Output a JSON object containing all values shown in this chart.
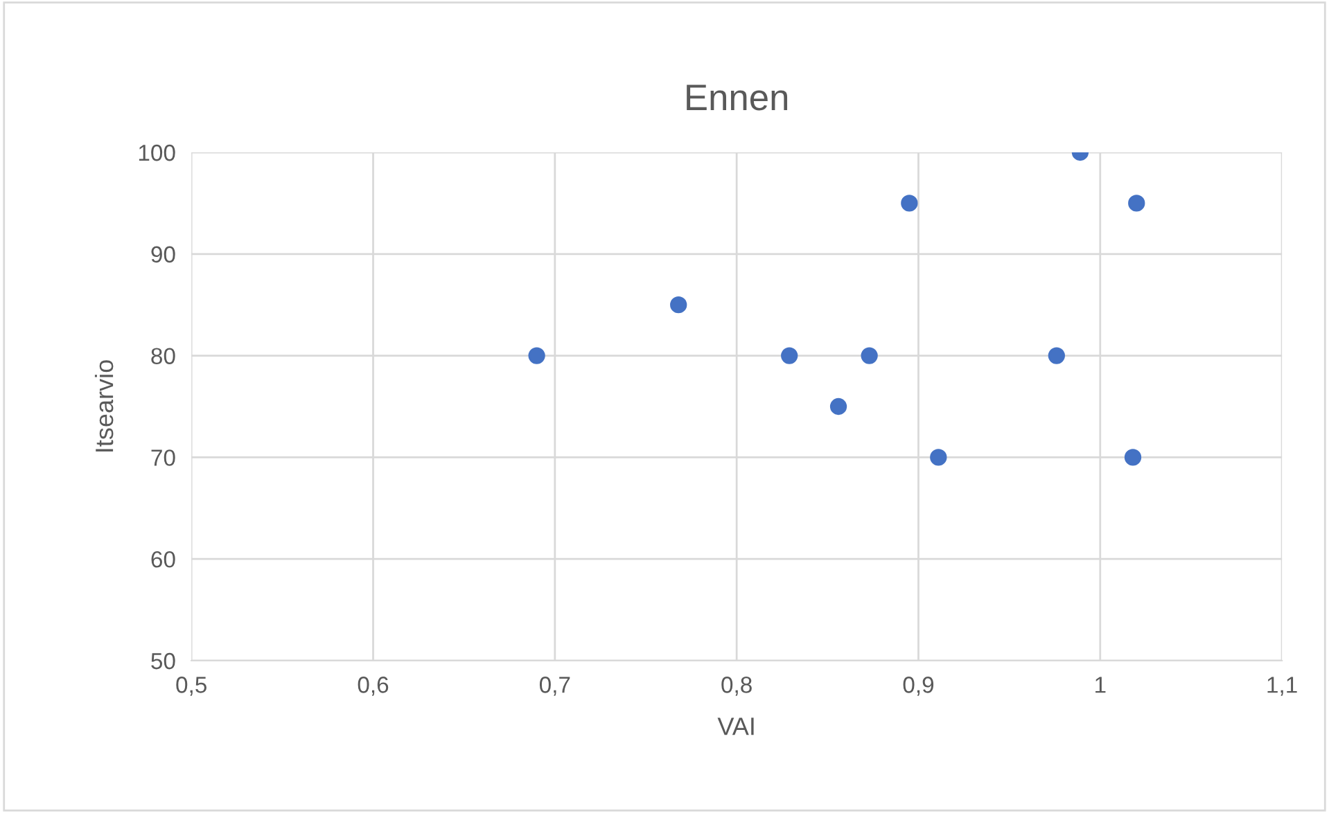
{
  "chart_data": {
    "type": "scatter",
    "title": "Ennen",
    "xlabel": "VAI",
    "ylabel": "Itsearvio",
    "x": [
      0.69,
      0.768,
      0.829,
      0.856,
      0.873,
      0.895,
      0.911,
      0.976,
      0.989,
      1.018,
      1.02
    ],
    "series": [
      {
        "color": "#4472c4",
        "values": [
          80,
          85,
          80,
          75,
          80,
          95,
          70,
          80,
          100,
          70,
          95
        ]
      }
    ],
    "xlim": [
      0.5,
      1.1
    ],
    "ylim": [
      50,
      100
    ],
    "xticks": [
      {
        "value": 0.5,
        "label": "0,5"
      },
      {
        "value": 0.6,
        "label": "0,6"
      },
      {
        "value": 0.7,
        "label": "0,7"
      },
      {
        "value": 0.8,
        "label": "0,8"
      },
      {
        "value": 0.9,
        "label": "0,9"
      },
      1,
      {
        "value": 1.1,
        "label": "1,1"
      }
    ],
    "yticks": [
      50,
      60,
      70,
      80,
      90,
      100
    ],
    "grid": true,
    "marker": "circle",
    "legend": false
  }
}
